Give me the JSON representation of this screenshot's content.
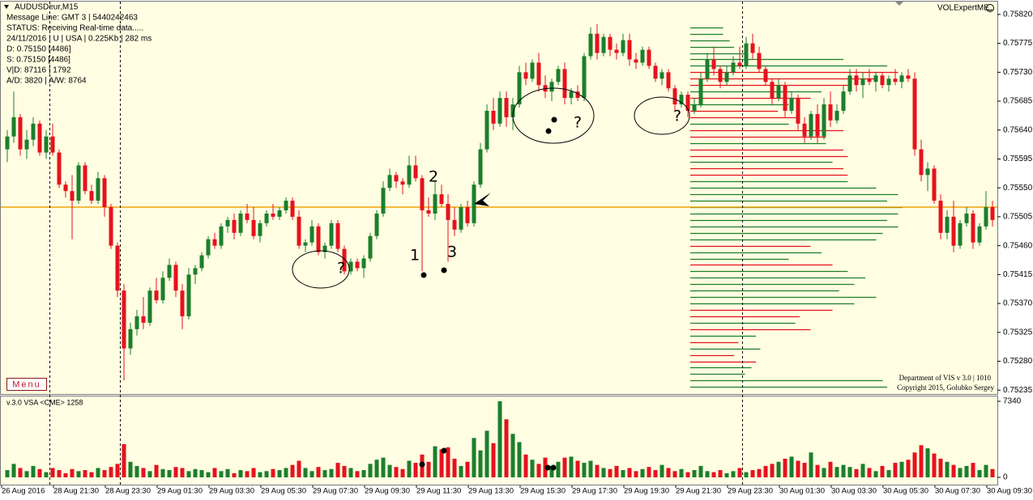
{
  "chart_data": {
    "type": "candlestick",
    "info_lines": [
      "AUDUSDeur,M15",
      "Message Line: GMT 3 | 5440242463",
      "STATUS:  Receiving Real-time data.....",
      "24/11/2016 | U | USA | 0.225Kb | 282 ms",
      "D: 0.75150  [4486]",
      "S: 0.75150  [4486]",
      "V|D: 87116 | 1792",
      "A/D: 3820 | A/W: 8764"
    ],
    "brand": "VOLExpertME",
    "menu": "Menu",
    "footer_lines": [
      "Department of VIS  v 3.0 | 1010",
      "Copyright 2015, Golubko Sergey"
    ],
    "volume_title": "v.3.0 VSA <CME> 1258",
    "annotations": [
      "1",
      "2",
      "3",
      "?",
      "?",
      "?"
    ],
    "up_color": "#1b7f2b",
    "down_color": "#e6121c",
    "ylim": [
      0.75229,
      0.7584
    ],
    "yticks": [
      {
        "value": 0.7582,
        "label": "0.75820"
      },
      {
        "value": 0.75775,
        "label": "0.75775"
      },
      {
        "value": 0.7573,
        "label": "0.75730"
      },
      {
        "value": 0.75685,
        "label": "0.75685"
      },
      {
        "value": 0.7564,
        "label": "0.75640"
      },
      {
        "value": 0.75595,
        "label": "0.75595"
      },
      {
        "value": 0.7555,
        "label": "0.75550"
      },
      {
        "value": 0.75505,
        "label": "0.75505"
      },
      {
        "value": 0.7546,
        "label": "0.75460"
      },
      {
        "value": 0.75415,
        "label": "0.75415"
      },
      {
        "value": 0.7537,
        "label": "0.75370"
      },
      {
        "value": 0.75325,
        "label": "0.75325"
      },
      {
        "value": 0.7528,
        "label": "0.75280"
      },
      {
        "value": 0.75235,
        "label": "0.75235"
      }
    ],
    "level": 0.7552,
    "level_color": "#f0a30a",
    "time_labels": [
      "26 Aug 2016",
      "28 Aug 21:30",
      "28 Aug 23:30",
      "29 Aug 01:30",
      "29 Aug 03:30",
      "29 Aug 05:30",
      "29 Aug 07:30",
      "29 Aug 09:30",
      "29 Aug 11:30",
      "29 Aug 13:30",
      "29 Aug 15:30",
      "29 Aug 17:30",
      "29 Aug 19:30",
      "29 Aug 21:30",
      "29 Aug 23:30",
      "30 Aug 01:30",
      "30 Aug 03:30",
      "30 Aug 05:30",
      "30 Aug 07:30",
      "30 Aug 09:30"
    ],
    "candles": [
      [
        0.7561,
        0.7564,
        0.7559,
        0.7563
      ],
      [
        0.7563,
        0.757,
        0.7562,
        0.7566
      ],
      [
        0.7566,
        0.75665,
        0.756,
        0.7561
      ],
      [
        0.7561,
        0.7564,
        0.75595,
        0.75625
      ],
      [
        0.75625,
        0.7566,
        0.75615,
        0.7565
      ],
      [
        0.7565,
        0.75655,
        0.756,
        0.75605
      ],
      [
        0.75605,
        0.7564,
        0.75595,
        0.7563
      ],
      [
        0.7563,
        0.7565,
        0.756,
        0.75605
      ],
      [
        0.75605,
        0.7561,
        0.7555,
        0.75555
      ],
      [
        0.75555,
        0.7556,
        0.75535,
        0.75545
      ],
      [
        0.75545,
        0.7557,
        0.7547,
        0.7553
      ],
      [
        0.7553,
        0.7559,
        0.75525,
        0.75585
      ],
      [
        0.75585,
        0.7559,
        0.7554,
        0.75545
      ],
      [
        0.75545,
        0.75555,
        0.75525,
        0.7553
      ],
      [
        0.7553,
        0.75575,
        0.75525,
        0.75565
      ],
      [
        0.75565,
        0.7557,
        0.75505,
        0.7552
      ],
      [
        0.7552,
        0.75525,
        0.75455,
        0.7546
      ],
      [
        0.7546,
        0.75465,
        0.7538,
        0.7539
      ],
      [
        0.7539,
        0.754,
        0.7525,
        0.753
      ],
      [
        0.753,
        0.7534,
        0.7529,
        0.7533
      ],
      [
        0.7533,
        0.7536,
        0.7532,
        0.7535
      ],
      [
        0.7535,
        0.7538,
        0.7533,
        0.7534
      ],
      [
        0.7534,
        0.75395,
        0.75335,
        0.7539
      ],
      [
        0.7539,
        0.7541,
        0.7537,
        0.75375
      ],
      [
        0.75375,
        0.7542,
        0.7537,
        0.7541
      ],
      [
        0.7541,
        0.7544,
        0.75405,
        0.7543
      ],
      [
        0.7543,
        0.75435,
        0.7538,
        0.7539
      ],
      [
        0.7539,
        0.754,
        0.7533,
        0.7535
      ],
      [
        0.7535,
        0.75425,
        0.75345,
        0.75415
      ],
      [
        0.75415,
        0.7543,
        0.754,
        0.75425
      ],
      [
        0.75425,
        0.7545,
        0.7542,
        0.75445
      ],
      [
        0.75445,
        0.75475,
        0.7544,
        0.7547
      ],
      [
        0.7547,
        0.7548,
        0.75455,
        0.7546
      ],
      [
        0.7546,
        0.75495,
        0.75455,
        0.7549
      ],
      [
        0.7549,
        0.75505,
        0.7548,
        0.755
      ],
      [
        0.755,
        0.7551,
        0.7547,
        0.7548
      ],
      [
        0.7548,
        0.75515,
        0.75475,
        0.7551
      ],
      [
        0.7551,
        0.75525,
        0.75495,
        0.755
      ],
      [
        0.755,
        0.7552,
        0.7547,
        0.75475
      ],
      [
        0.75475,
        0.755,
        0.75465,
        0.75495
      ],
      [
        0.75495,
        0.75515,
        0.7549,
        0.7551
      ],
      [
        0.7551,
        0.75525,
        0.755,
        0.75505
      ],
      [
        0.75505,
        0.7552,
        0.755,
        0.75515
      ],
      [
        0.75515,
        0.75535,
        0.7551,
        0.7553
      ],
      [
        0.7553,
        0.75535,
        0.755,
        0.75505
      ],
      [
        0.75505,
        0.75515,
        0.75455,
        0.7546
      ],
      [
        0.7546,
        0.7547,
        0.7545,
        0.75465
      ],
      [
        0.75465,
        0.755,
        0.7546,
        0.7549
      ],
      [
        0.7549,
        0.75495,
        0.75445,
        0.7545
      ],
      [
        0.7545,
        0.75465,
        0.7544,
        0.7546
      ],
      [
        0.7546,
        0.755,
        0.75455,
        0.75495
      ],
      [
        0.75495,
        0.755,
        0.7545,
        0.75455
      ],
      [
        0.75455,
        0.7546,
        0.75415,
        0.7542
      ],
      [
        0.7542,
        0.7544,
        0.75415,
        0.75435
      ],
      [
        0.75435,
        0.7544,
        0.7542,
        0.75425
      ],
      [
        0.75425,
        0.75445,
        0.7541,
        0.7544
      ],
      [
        0.7544,
        0.7548,
        0.75435,
        0.75475
      ],
      [
        0.75475,
        0.75515,
        0.7547,
        0.7551
      ],
      [
        0.7551,
        0.7556,
        0.75505,
        0.7555
      ],
      [
        0.7555,
        0.7558,
        0.75545,
        0.7557
      ],
      [
        0.7557,
        0.75575,
        0.7555,
        0.7556
      ],
      [
        0.7556,
        0.75565,
        0.7554,
        0.75555
      ],
      [
        0.75555,
        0.756,
        0.7555,
        0.75585
      ],
      [
        0.75585,
        0.756,
        0.7556,
        0.75565
      ],
      [
        0.75565,
        0.7557,
        0.7542,
        0.75515
      ],
      [
        0.75515,
        0.75535,
        0.75505,
        0.7551
      ],
      [
        0.7551,
        0.7556,
        0.755,
        0.7554
      ],
      [
        0.7554,
        0.75555,
        0.7552,
        0.75525
      ],
      [
        0.75525,
        0.7554,
        0.75435,
        0.755
      ],
      [
        0.755,
        0.7552,
        0.75475,
        0.75485
      ],
      [
        0.75485,
        0.75525,
        0.7548,
        0.7552
      ],
      [
        0.7552,
        0.7553,
        0.7549,
        0.75495
      ],
      [
        0.75495,
        0.7556,
        0.7549,
        0.75555
      ],
      [
        0.75555,
        0.7562,
        0.7555,
        0.7561
      ],
      [
        0.7561,
        0.7568,
        0.75605,
        0.7567
      ],
      [
        0.7567,
        0.7569,
        0.7564,
        0.7565
      ],
      [
        0.7565,
        0.757,
        0.75645,
        0.7569
      ],
      [
        0.7569,
        0.757,
        0.75645,
        0.7566
      ],
      [
        0.7566,
        0.7569,
        0.7564,
        0.7568
      ],
      [
        0.7568,
        0.7574,
        0.75675,
        0.7573
      ],
      [
        0.7573,
        0.75745,
        0.7571,
        0.7572
      ],
      [
        0.7572,
        0.7575,
        0.75715,
        0.75745
      ],
      [
        0.75745,
        0.7576,
        0.757,
        0.7571
      ],
      [
        0.7571,
        0.75725,
        0.7569,
        0.757
      ],
      [
        0.757,
        0.7572,
        0.75685,
        0.75715
      ],
      [
        0.75715,
        0.7574,
        0.7571,
        0.75735
      ],
      [
        0.75735,
        0.75745,
        0.7568,
        0.7569
      ],
      [
        0.7569,
        0.75705,
        0.7568,
        0.757
      ],
      [
        0.757,
        0.7571,
        0.75685,
        0.7569
      ],
      [
        0.7569,
        0.7576,
        0.75685,
        0.75755
      ],
      [
        0.75755,
        0.758,
        0.7575,
        0.7579
      ],
      [
        0.7579,
        0.75805,
        0.7575,
        0.7576
      ],
      [
        0.7576,
        0.7579,
        0.75755,
        0.75785
      ],
      [
        0.75785,
        0.7579,
        0.75755,
        0.75765
      ],
      [
        0.75765,
        0.75775,
        0.7575,
        0.7576
      ],
      [
        0.7576,
        0.7579,
        0.75755,
        0.7578
      ],
      [
        0.7578,
        0.7579,
        0.7574,
        0.7575
      ],
      [
        0.7575,
        0.7576,
        0.75735,
        0.75745
      ],
      [
        0.75745,
        0.7577,
        0.7574,
        0.75765
      ],
      [
        0.75765,
        0.7577,
        0.75735,
        0.7574
      ],
      [
        0.7574,
        0.75745,
        0.75715,
        0.7572
      ],
      [
        0.7572,
        0.75735,
        0.7571,
        0.7573
      ],
      [
        0.7573,
        0.75735,
        0.757,
        0.75705
      ],
      [
        0.75705,
        0.7571,
        0.7567,
        0.7568
      ],
      [
        0.7568,
        0.757,
        0.75675,
        0.75695
      ],
      [
        0.75695,
        0.757,
        0.7566,
        0.7567
      ],
      [
        0.7567,
        0.7569,
        0.75665,
        0.7568
      ],
      [
        0.7568,
        0.7573,
        0.75675,
        0.7572
      ],
      [
        0.7572,
        0.7576,
        0.75715,
        0.7575
      ],
      [
        0.7575,
        0.7577,
        0.75725,
        0.75735
      ],
      [
        0.75735,
        0.7574,
        0.75705,
        0.75715
      ],
      [
        0.75715,
        0.7574,
        0.7571,
        0.7573
      ],
      [
        0.7573,
        0.75755,
        0.75725,
        0.75745
      ],
      [
        0.75745,
        0.7577,
        0.75735,
        0.7574
      ],
      [
        0.7574,
        0.75785,
        0.75735,
        0.75775
      ],
      [
        0.75775,
        0.7579,
        0.7575,
        0.7576
      ],
      [
        0.7576,
        0.7577,
        0.7573,
        0.75735
      ],
      [
        0.75735,
        0.7574,
        0.7571,
        0.75715
      ],
      [
        0.75715,
        0.7572,
        0.7568,
        0.7569
      ],
      [
        0.7569,
        0.7572,
        0.75685,
        0.7571
      ],
      [
        0.7571,
        0.75715,
        0.7566,
        0.7567
      ],
      [
        0.7567,
        0.757,
        0.75665,
        0.7569
      ],
      [
        0.7569,
        0.75695,
        0.7564,
        0.7565
      ],
      [
        0.7565,
        0.7566,
        0.7562,
        0.7563
      ],
      [
        0.7563,
        0.7567,
        0.75625,
        0.75665
      ],
      [
        0.75665,
        0.7568,
        0.7562,
        0.7563
      ],
      [
        0.7563,
        0.7569,
        0.75625,
        0.7568
      ],
      [
        0.7568,
        0.757,
        0.75645,
        0.75655
      ],
      [
        0.75655,
        0.7568,
        0.7565,
        0.7567
      ],
      [
        0.7567,
        0.7571,
        0.75665,
        0.757
      ],
      [
        0.757,
        0.75735,
        0.75695,
        0.75725
      ],
      [
        0.75725,
        0.75735,
        0.757,
        0.7571
      ],
      [
        0.7571,
        0.7573,
        0.7569,
        0.7572
      ],
      [
        0.7572,
        0.75735,
        0.7571,
        0.75715
      ],
      [
        0.75715,
        0.7573,
        0.757,
        0.75725
      ],
      [
        0.75725,
        0.7573,
        0.75705,
        0.7571
      ],
      [
        0.7571,
        0.75725,
        0.757,
        0.7572
      ],
      [
        0.7572,
        0.75735,
        0.7571,
        0.75715
      ],
      [
        0.75715,
        0.7573,
        0.75705,
        0.75725
      ],
      [
        0.75725,
        0.75735,
        0.75715,
        0.7572
      ],
      [
        0.7572,
        0.7573,
        0.756,
        0.7561
      ],
      [
        0.7561,
        0.75625,
        0.7556,
        0.7557
      ],
      [
        0.7557,
        0.7559,
        0.75545,
        0.7558
      ],
      [
        0.7558,
        0.75585,
        0.75525,
        0.7553
      ],
      [
        0.7553,
        0.7554,
        0.7547,
        0.7548
      ],
      [
        0.7548,
        0.75515,
        0.7547,
        0.75505
      ],
      [
        0.75505,
        0.7553,
        0.7545,
        0.7546
      ],
      [
        0.7546,
        0.755,
        0.75455,
        0.75495
      ],
      [
        0.75495,
        0.7552,
        0.7549,
        0.7551
      ],
      [
        0.7551,
        0.75515,
        0.75455,
        0.75465
      ],
      [
        0.75465,
        0.75495,
        0.7546,
        0.7549
      ],
      [
        0.7549,
        0.75545,
        0.75485,
        0.7552
      ],
      [
        0.7552,
        0.7553,
        0.7549,
        0.755
      ]
    ],
    "volume_ylim": [
      0,
      7340
    ],
    "volume_ticks": [
      0,
      7340
    ],
    "volumes": [
      700,
      1300,
      900,
      600,
      1100,
      800,
      500,
      900,
      700,
      400,
      800,
      600,
      700,
      500,
      900,
      700,
      1000,
      1300,
      3200,
      1500,
      1100,
      900,
      600,
      1200,
      800,
      700,
      1000,
      900,
      600,
      800,
      700,
      500,
      900,
      600,
      800,
      400,
      700,
      600,
      900,
      500,
      600,
      800,
      700,
      900,
      1200,
      1600,
      900,
      600,
      1000,
      700,
      800,
      1400,
      1100,
      900,
      600,
      700,
      1300,
      1700,
      1900,
      1200,
      1000,
      800,
      1600,
      1400,
      2200,
      1500,
      3000,
      2700,
      2900,
      1800,
      1100,
      1500,
      3800,
      2600,
      4500,
      3300,
      7340,
      5600,
      4200,
      3400,
      2200,
      1700,
      1300,
      1900,
      1100,
      1500,
      1900,
      2000,
      1600,
      1400,
      1600,
      1200,
      900,
      800,
      1100,
      700,
      900,
      600,
      800,
      1000,
      700,
      1200,
      900,
      600,
      800,
      500,
      700,
      1100,
      600,
      500,
      700,
      400,
      600,
      900,
      500,
      700,
      800,
      1100,
      1300,
      1500,
      1800,
      2000,
      1600,
      1400,
      2400,
      1200,
      900,
      1500,
      1000,
      1200,
      1000,
      800,
      1300,
      900,
      600,
      1100,
      700,
      1400,
      1500,
      1700,
      2400,
      3100,
      2800,
      2300,
      1800,
      1500,
      1200,
      900,
      1100,
      1400,
      700,
      1200,
      800
    ],
    "profile": {
      "levels": [
        0.758,
        0.7579,
        0.7578,
        0.7577,
        0.7576,
        0.7575,
        0.7574,
        0.7573,
        0.7572,
        0.7571,
        0.757,
        0.7569,
        0.7568,
        0.7567,
        0.7566,
        0.7565,
        0.7564,
        0.7563,
        0.7562,
        0.7561,
        0.756,
        0.7559,
        0.7558,
        0.7557,
        0.7556,
        0.7555,
        0.7554,
        0.7553,
        0.7552,
        0.7551,
        0.755,
        0.7549,
        0.7548,
        0.7547,
        0.7546,
        0.7545,
        0.7544,
        0.7543,
        0.7542,
        0.7541,
        0.754,
        0.7539,
        0.7538,
        0.7537,
        0.7536,
        0.7535,
        0.7534,
        0.7533,
        0.7532,
        0.7531,
        0.753,
        0.7529,
        0.7528,
        0.7527,
        0.7526,
        0.7525,
        0.7524
      ],
      "values": [
        15,
        15,
        18,
        20,
        25,
        70,
        90,
        95,
        85,
        72,
        60,
        55,
        45,
        40,
        50,
        45,
        70,
        62,
        62,
        70,
        72,
        65,
        70,
        72,
        72,
        85,
        95,
        90,
        97,
        95,
        90,
        95,
        88,
        85,
        55,
        60,
        45,
        65,
        72,
        80,
        75,
        68,
        85,
        75,
        65,
        50,
        48,
        55,
        30,
        22,
        32,
        20,
        30,
        28,
        25,
        88,
        90
      ],
      "colors": [
        "#1b7f2b",
        "#1b7f2b",
        "#1b7f2b",
        "#1b7f2b",
        "#1b7f2b",
        "#1b7f2b",
        "#1b7f2b",
        "#e6121c",
        "#e6121c",
        "#e6121c",
        "#1b7f2b",
        "#e6121c",
        "#1b7f2b",
        "#e6121c",
        "#e6121c",
        "#1b7f2b",
        "#e6121c",
        "#e6121c",
        "#1b7f2b",
        "#e6121c",
        "#e6121c",
        "#1b7f2b",
        "#e6121c",
        "#e6121c",
        "#1b7f2b",
        "#1b7f2b",
        "#1b7f2b",
        "#1b7f2b",
        "#1b7f2b",
        "#1b7f2b",
        "#1b7f2b",
        "#1b7f2b",
        "#1b7f2b",
        "#1b7f2b",
        "#e6121c",
        "#1b7f2b",
        "#1b7f2b",
        "#e6121c",
        "#1b7f2b",
        "#1b7f2b",
        "#1b7f2b",
        "#1b7f2b",
        "#1b7f2b",
        "#1b7f2b",
        "#e6121c",
        "#e6121c",
        "#1b7f2b",
        "#e6121c",
        "#1b7f2b",
        "#e6121c",
        "#1b7f2b",
        "#e6121c",
        "#e6121c",
        "#1b7f2b",
        "#1b7f2b",
        "#1b7f2b",
        "#1b7f2b"
      ]
    }
  }
}
